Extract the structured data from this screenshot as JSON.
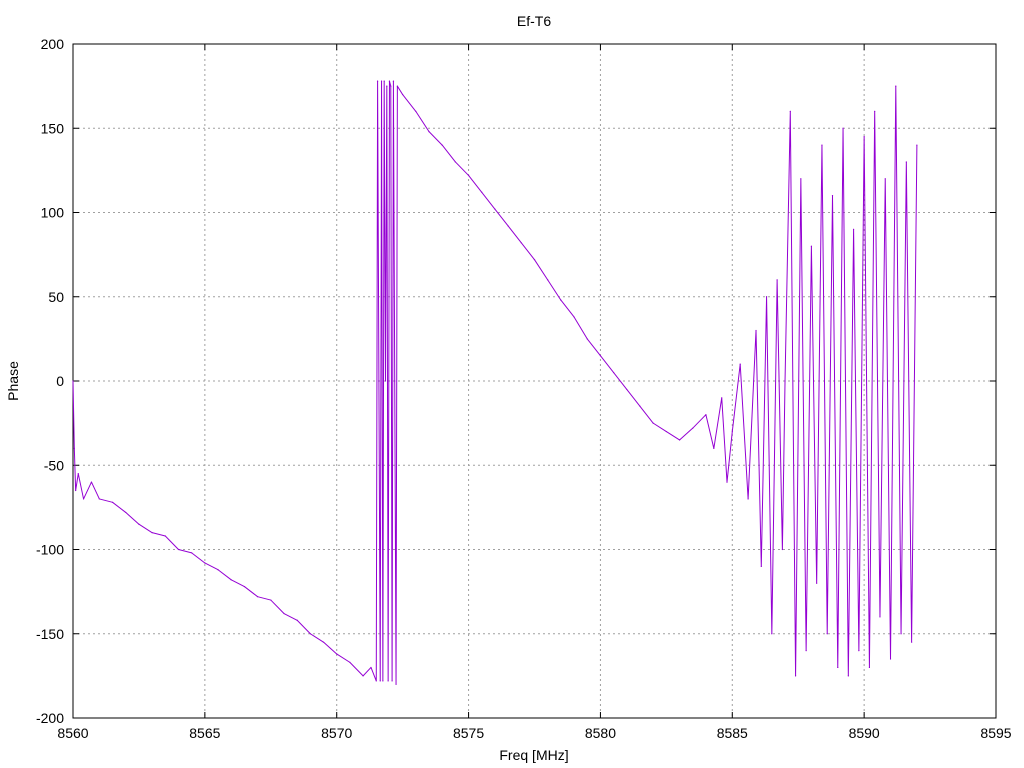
{
  "chart_data": {
    "type": "line",
    "title": "Ef-T6",
    "xlabel": "Freq [MHz]",
    "ylabel": "Phase",
    "xlim": [
      8560,
      8595
    ],
    "ylim": [
      -200,
      200
    ],
    "x_ticks": [
      8560,
      8565,
      8570,
      8575,
      8580,
      8585,
      8590,
      8595
    ],
    "y_ticks": [
      -200,
      -150,
      -100,
      -50,
      0,
      50,
      100,
      150,
      200
    ],
    "x_tick_labels": [
      "8560",
      "8565",
      "8570",
      "8575",
      "8580",
      "8585",
      "8590",
      "8595"
    ],
    "y_tick_labels": [
      "-200",
      "-150",
      "-100",
      "-50",
      "0",
      "50",
      "100",
      "150",
      "200"
    ],
    "grid": true,
    "legend": "none",
    "series": [
      {
        "color": "#9400d3",
        "x": [
          8560.0,
          8560.05,
          8560.1,
          8560.2,
          8560.4,
          8560.7,
          8561.0,
          8561.5,
          8562.0,
          8562.5,
          8563.0,
          8563.5,
          8564.0,
          8564.5,
          8565.0,
          8565.5,
          8566.0,
          8566.5,
          8567.0,
          8567.5,
          8568.0,
          8568.5,
          8569.0,
          8569.5,
          8570.0,
          8570.5,
          8571.0,
          8571.3,
          8571.5,
          8571.55,
          8571.6,
          8571.65,
          8571.7,
          8571.75,
          8571.8,
          8571.85,
          8571.9,
          8571.95,
          8572.0,
          8572.05,
          8572.1,
          8572.15,
          8572.2,
          8572.25,
          8572.3,
          8572.5,
          8573.0,
          8573.5,
          8574.0,
          8574.5,
          8575.0,
          8575.5,
          8576.0,
          8576.5,
          8577.0,
          8577.5,
          8578.0,
          8578.5,
          8579.0,
          8579.5,
          8580.0,
          8580.5,
          8581.0,
          8581.5,
          8582.0,
          8582.5,
          8583.0,
          8583.5,
          8584.0,
          8584.3,
          8584.6,
          8584.8,
          8585.0,
          8585.3,
          8585.6,
          8585.9,
          8586.1,
          8586.3,
          8586.5,
          8586.7,
          8586.9,
          8587.0,
          8587.2,
          8587.4,
          8587.6,
          8587.8,
          8588.0,
          8588.2,
          8588.4,
          8588.6,
          8588.8,
          8589.0,
          8589.2,
          8589.4,
          8589.6,
          8589.8,
          8590.0,
          8590.2,
          8590.4,
          8590.6,
          8590.8,
          8591.0,
          8591.2,
          8591.4,
          8591.6,
          8591.8,
          8592.0
        ],
        "y": [
          0,
          -40,
          -65,
          -55,
          -70,
          -60,
          -70,
          -72,
          -78,
          -85,
          -90,
          -92,
          -100,
          -102,
          -108,
          -112,
          -118,
          -122,
          -128,
          -130,
          -138,
          -142,
          -150,
          -155,
          -162,
          -167,
          -175,
          -170,
          -178,
          178,
          0,
          -178,
          178,
          -178,
          178,
          0,
          175,
          -178,
          178,
          175,
          -178,
          178,
          0,
          -180,
          175,
          170,
          160,
          148,
          140,
          130,
          122,
          112,
          102,
          92,
          82,
          72,
          60,
          48,
          38,
          25,
          15,
          5,
          -5,
          -15,
          -25,
          -30,
          -35,
          -28,
          -20,
          -40,
          -10,
          -60,
          -30,
          10,
          -70,
          30,
          -110,
          50,
          -150,
          60,
          -100,
          0,
          160,
          -175,
          120,
          -160,
          80,
          -120,
          140,
          -150,
          110,
          -170,
          150,
          -175,
          90,
          -160,
          145,
          -170,
          160,
          -140,
          120,
          -165,
          175,
          -150,
          130,
          -155,
          140
        ]
      }
    ]
  }
}
